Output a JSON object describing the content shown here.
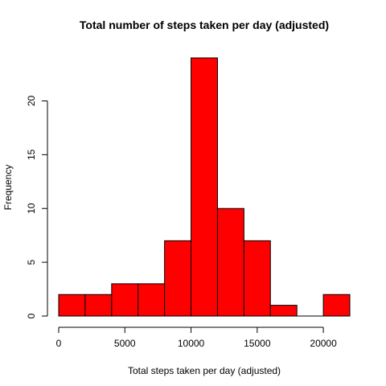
{
  "chart_data": {
    "type": "bar",
    "title": "Total number of steps taken per day (adjusted)",
    "xlabel": "Total steps taken per day (adjusted)",
    "ylabel": "Frequency",
    "bins": [
      {
        "from": 0,
        "to": 2000,
        "count": 2
      },
      {
        "from": 2000,
        "to": 4000,
        "count": 2
      },
      {
        "from": 4000,
        "to": 6000,
        "count": 3
      },
      {
        "from": 6000,
        "to": 8000,
        "count": 3
      },
      {
        "from": 8000,
        "to": 10000,
        "count": 7
      },
      {
        "from": 10000,
        "to": 12000,
        "count": 24
      },
      {
        "from": 12000,
        "to": 14000,
        "count": 10
      },
      {
        "from": 14000,
        "to": 16000,
        "count": 7
      },
      {
        "from": 16000,
        "to": 18000,
        "count": 1
      },
      {
        "from": 18000,
        "to": 20000,
        "count": 0
      },
      {
        "from": 20000,
        "to": 22000,
        "count": 2
      }
    ],
    "xlim": [
      0,
      22000
    ],
    "ylim": [
      0,
      24
    ],
    "xticks": [
      0,
      5000,
      10000,
      15000,
      20000
    ],
    "yticks": [
      0,
      5,
      10,
      15,
      20
    ],
    "bar_color": "#ff0000",
    "grid": false,
    "legend": "none"
  }
}
